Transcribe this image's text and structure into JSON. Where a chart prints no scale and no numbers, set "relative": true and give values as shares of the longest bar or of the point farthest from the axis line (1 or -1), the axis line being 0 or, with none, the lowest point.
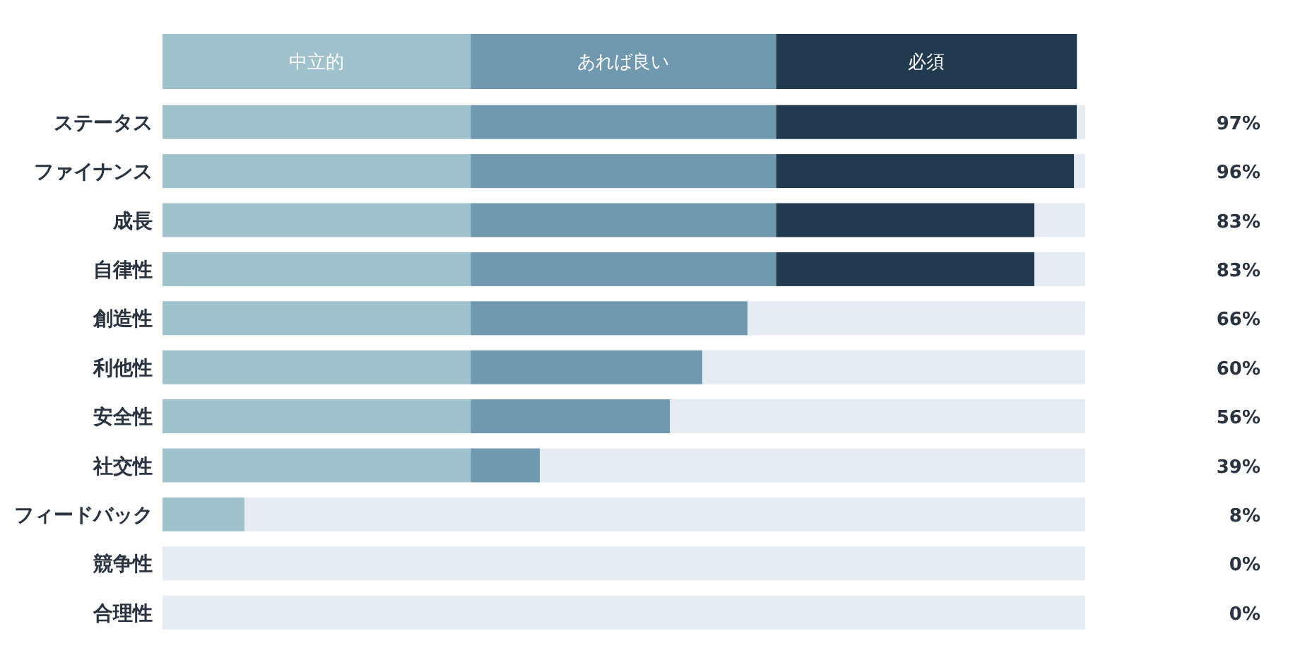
{
  "chart_data": {
    "type": "bar",
    "orientation": "horizontal",
    "stacked": true,
    "relative": true,
    "legend": "top",
    "categories": [
      "ステータス",
      "ファイナンス",
      "成長",
      "自律性",
      "創造性",
      "利他性",
      "安全性",
      "社交性",
      "フィードバック",
      "競争性",
      "合理性"
    ],
    "series": [
      {
        "name": "中立的",
        "color": "#9fc2cc",
        "values": [
          0.334,
          0.334,
          0.334,
          0.334,
          0.334,
          0.334,
          0.334,
          0.334,
          0.089,
          0,
          0
        ]
      },
      {
        "name": "あれば良い",
        "color": "#7099b0",
        "values": [
          0.331,
          0.331,
          0.331,
          0.331,
          0.3,
          0.251,
          0.216,
          0.075,
          0,
          0,
          0
        ]
      },
      {
        "name": "必須",
        "color": "#213a4f",
        "values": [
          0.326,
          0.323,
          0.28,
          0.28,
          0,
          0,
          0,
          0,
          0,
          0,
          0
        ]
      },
      {
        "color": "#e6ecf2",
        "values": [
          0.009,
          0.012,
          0.055,
          0.055,
          0.366,
          0.415,
          0.45,
          0.591,
          0.911,
          1,
          1
        ]
      }
    ],
    "annotations": [
      "97%",
      "96%",
      "83%",
      "83%",
      "66%",
      "60%",
      "56%",
      "39%",
      "8%",
      "0%",
      "0%"
    ]
  }
}
